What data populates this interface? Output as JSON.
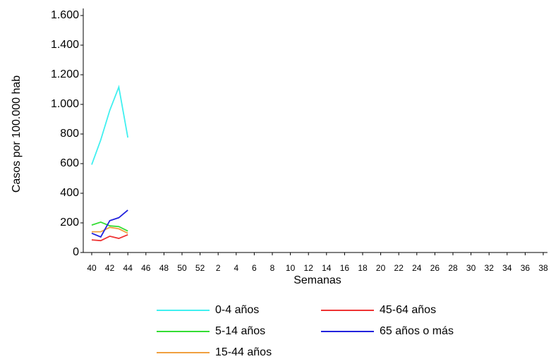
{
  "chart_data": {
    "type": "line",
    "y_label": "Casos por 100.000 hab",
    "x_label": "Semanas",
    "categories": [
      "40",
      null,
      "42",
      null,
      "44",
      null,
      "46",
      null,
      "48",
      null,
      "50",
      null,
      "52",
      null,
      "2",
      null,
      "4",
      null,
      "6",
      null,
      "8",
      null,
      "10",
      null,
      "12",
      null,
      "14",
      null,
      "16",
      null,
      "18",
      null,
      "20",
      null,
      "22",
      null,
      "24",
      null,
      "26",
      null,
      "28",
      null,
      "30",
      null,
      "32",
      null,
      "34",
      null,
      "36",
      null,
      "38"
    ],
    "ylim": [
      0,
      1600
    ],
    "yticks": [
      0,
      200,
      400,
      600,
      800,
      {
        "value": 1000,
        "label": "1.000"
      },
      {
        "value": 1200,
        "label": "1.200"
      },
      {
        "value": 1400,
        "label": "1.400"
      },
      {
        "value": 1600,
        "label": "1.600"
      }
    ],
    "grid": false,
    "series": [
      {
        "name": "0-4 años",
        "color": "#40f0f0",
        "values": [
          593,
          760,
          960,
          1117,
          776,
          null,
          null,
          null,
          null,
          null,
          null,
          null,
          null,
          null,
          null,
          null,
          null,
          null,
          null,
          null,
          null,
          null,
          null,
          null,
          null,
          null,
          null,
          null,
          null,
          null,
          null,
          null,
          null,
          null,
          null,
          null,
          null,
          null,
          null,
          null,
          null,
          null,
          null,
          null,
          null,
          null,
          null,
          null,
          null,
          null,
          null
        ]
      },
      {
        "name": "5-14 años",
        "color": "#33dd33",
        "values": [
          185,
          205,
          180,
          175,
          145,
          null,
          null,
          null,
          null,
          null,
          null,
          null,
          null,
          null,
          null,
          null,
          null,
          null,
          null,
          null,
          null,
          null,
          null,
          null,
          null,
          null,
          null,
          null,
          null,
          null,
          null,
          null,
          null,
          null,
          null,
          null,
          null,
          null,
          null,
          null,
          null,
          null,
          null,
          null,
          null,
          null,
          null,
          null,
          null,
          null,
          null
        ]
      },
      {
        "name": "15-44 años",
        "color": "#f0a040",
        "values": [
          140,
          140,
          170,
          160,
          130,
          null,
          null,
          null,
          null,
          null,
          null,
          null,
          null,
          null,
          null,
          null,
          null,
          null,
          null,
          null,
          null,
          null,
          null,
          null,
          null,
          null,
          null,
          null,
          null,
          null,
          null,
          null,
          null,
          null,
          null,
          null,
          null,
          null,
          null,
          null,
          null,
          null,
          null,
          null,
          null,
          null,
          null,
          null,
          null,
          null,
          null
        ]
      },
      {
        "name": "45-64 años",
        "color": "#ee3333",
        "values": [
          85,
          80,
          110,
          95,
          120,
          null,
          null,
          null,
          null,
          null,
          null,
          null,
          null,
          null,
          null,
          null,
          null,
          null,
          null,
          null,
          null,
          null,
          null,
          null,
          null,
          null,
          null,
          null,
          null,
          null,
          null,
          null,
          null,
          null,
          null,
          null,
          null,
          null,
          null,
          null,
          null,
          null,
          null,
          null,
          null,
          null,
          null,
          null,
          null,
          null,
          null
        ]
      },
      {
        "name": "65 años o más",
        "color": "#2222dd",
        "values": [
          130,
          105,
          215,
          235,
          286,
          null,
          null,
          null,
          null,
          null,
          null,
          null,
          null,
          null,
          null,
          null,
          null,
          null,
          null,
          null,
          null,
          null,
          null,
          null,
          null,
          null,
          null,
          null,
          null,
          null,
          null,
          null,
          null,
          null,
          null,
          null,
          null,
          null,
          null,
          null,
          null,
          null,
          null,
          null,
          null,
          null,
          null,
          null,
          null,
          null,
          null
        ]
      }
    ]
  }
}
